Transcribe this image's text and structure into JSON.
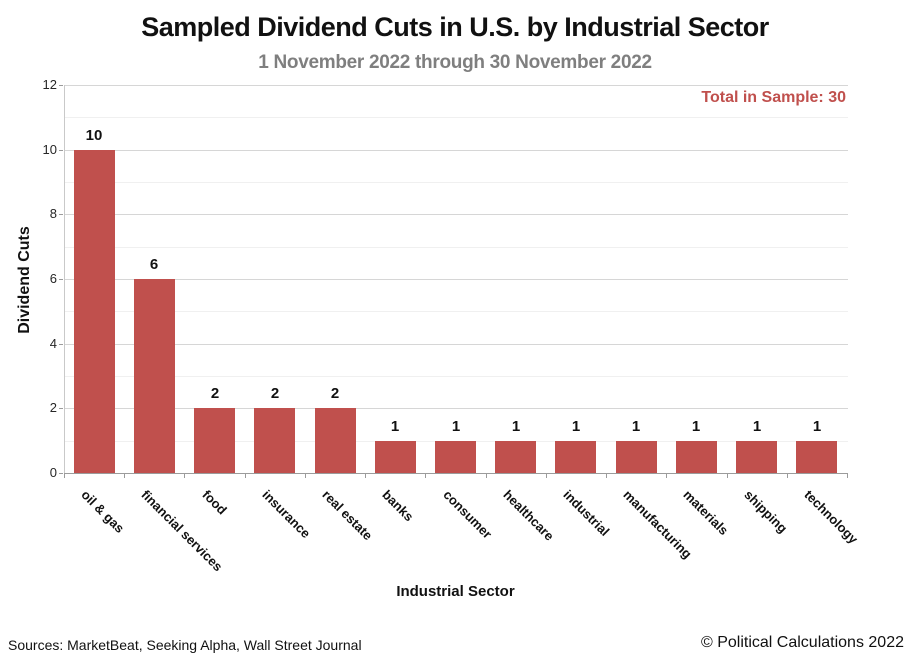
{
  "header": {
    "title": "Sampled Dividend Cuts in U.S. by Industrial Sector",
    "subtitle": "1 November 2022 through 30 November 2022"
  },
  "chart_data": {
    "type": "bar",
    "title": "Sampled Dividend Cuts in U.S. by Industrial Sector",
    "subtitle": "1 November 2022 through 30 November 2022",
    "xlabel": "Industrial Sector",
    "ylabel": "Dividend Cuts",
    "categories": [
      "oil & gas",
      "financial services",
      "food",
      "insurance",
      "real estate",
      "banks",
      "consumer",
      "healthcare",
      "industrial",
      "manufacturing",
      "materials",
      "shipping",
      "technology"
    ],
    "values": [
      10,
      6,
      2,
      2,
      2,
      1,
      1,
      1,
      1,
      1,
      1,
      1,
      1
    ],
    "ylim": [
      0,
      12
    ],
    "ytick_step": 2,
    "minor_grid_step": 1,
    "grid": true,
    "legend": "none",
    "data_labels": true,
    "bar_color": "#C0504D",
    "annotation": {
      "text": "Total in Sample: 30",
      "color": "#C0504D",
      "position": "top-right"
    }
  },
  "footer": {
    "sources": "Sources: MarketBeat, Seeking Alpha, Wall Street Journal",
    "copyright": "© Political Calculations 2022"
  },
  "colors": {
    "bar": "#C0504D",
    "subtitle_gray": "#7F7F7F",
    "annotation_red": "#C0504D",
    "major_gridline": "#d6d6d6",
    "minor_gridline": "#f0f0f0"
  }
}
